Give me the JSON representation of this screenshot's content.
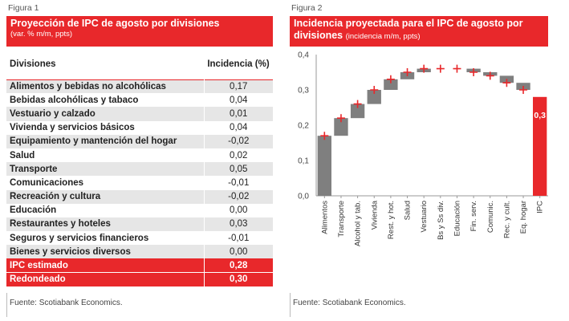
{
  "figure1": {
    "label": "Figura 1",
    "title": "Proyección de IPC de agosto por divisiones",
    "subtitle": "(var. % m/m, ppts)",
    "col_division": "Divisiones",
    "col_incidence": "Incidencia (%)",
    "rows": [
      {
        "division": "Alimentos y bebidas no alcohólicas",
        "value": "0,17"
      },
      {
        "division": "Bebidas alcohólicas y tabaco",
        "value": "0,04"
      },
      {
        "division": "Vestuario y calzado",
        "value": "0,01"
      },
      {
        "division": "Vivienda y servicios básicos",
        "value": "0,04"
      },
      {
        "division": "Equipamiento y mantención del hogar",
        "value": "-0,02"
      },
      {
        "division": "Salud",
        "value": "0,02"
      },
      {
        "division": "Transporte",
        "value": "0,05"
      },
      {
        "division": "Comunicaciones",
        "value": "-0,01"
      },
      {
        "division": "Recreación y cultura",
        "value": "-0,02"
      },
      {
        "division": "Educación",
        "value": "0,00"
      },
      {
        "division": "Restaurantes y hoteles",
        "value": "0,03"
      },
      {
        "division": "Seguros y servicios financieros",
        "value": "-0,01"
      },
      {
        "division": "Bienes y servicios diversos",
        "value": "0,00"
      }
    ],
    "totals": [
      {
        "division": "IPC estimado",
        "value": "0,28"
      },
      {
        "division": "Redondeado",
        "value": "0,30"
      }
    ],
    "source": "Fuente: Scotiabank Economics."
  },
  "figure2": {
    "label": "Figura 2",
    "title": "Incidencia proyectada para el IPC de agosto por divisiones",
    "title_line1": "Incidencia proyectada para el IPC de agosto por",
    "title_line2": "divisiones",
    "subtitle": "(incidencia m/m, ppts)",
    "source": "Fuente: Scotiabank Economics."
  },
  "chart_data": {
    "type": "bar",
    "subtype": "waterfall",
    "categories": [
      "Alimentos",
      "Transporte",
      "Alcohol y tab.",
      "Vivienda",
      "Rest. y hot.",
      "Salud",
      "Vestuario",
      "Bs y Ss div.",
      "Educación",
      "Fin. serv.",
      "Comunic.",
      "Rec. y cult.",
      "Eq. hogar",
      "IPC"
    ],
    "values": [
      0.17,
      0.05,
      0.04,
      0.04,
      0.03,
      0.02,
      0.01,
      0.0,
      0.0,
      -0.01,
      -0.01,
      -0.02,
      -0.02,
      0.28
    ],
    "cumulative": [
      0.17,
      0.22,
      0.26,
      0.3,
      0.33,
      0.35,
      0.36,
      0.36,
      0.36,
      0.35,
      0.34,
      0.32,
      0.3,
      0.28
    ],
    "total_label": "0,3",
    "ylim": [
      0,
      0.4
    ],
    "yticks": [
      "0,0",
      "0,1",
      "0,2",
      "0,3",
      "0,4"
    ],
    "ytick_values": [
      0,
      0.1,
      0.2,
      0.3,
      0.4
    ],
    "colors": {
      "step": "#7f7f7f",
      "total": "#e8282b",
      "marker": "#e8282b"
    },
    "grid": false,
    "legend": "none"
  }
}
